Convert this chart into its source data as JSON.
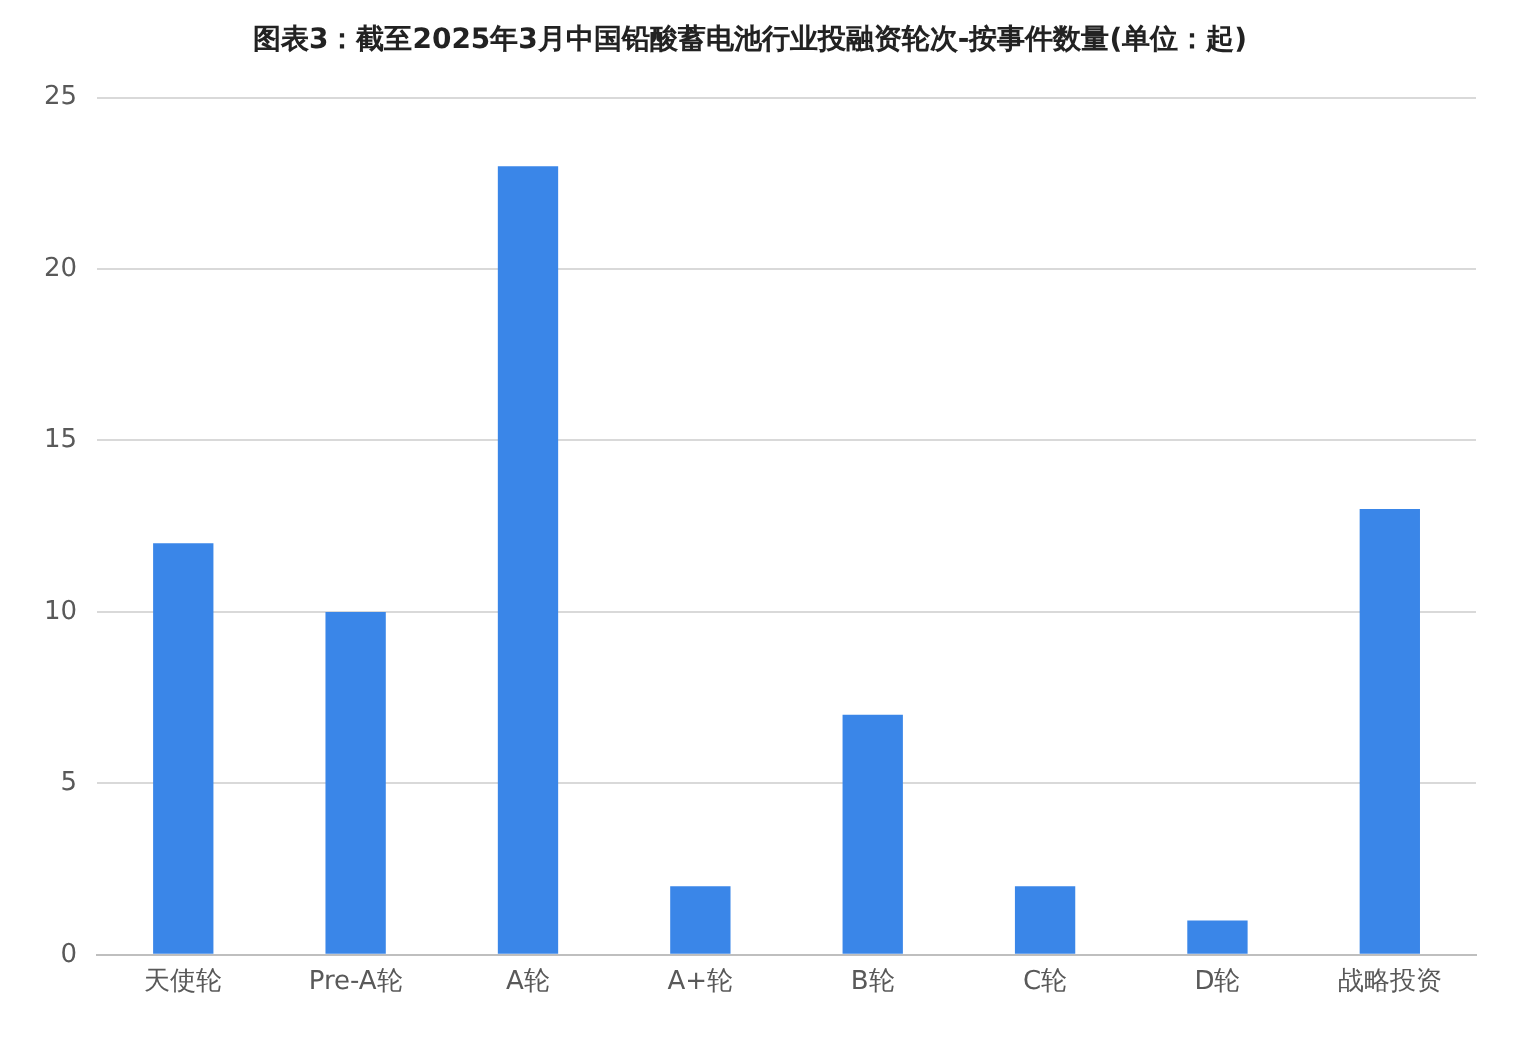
{
  "chart_data": {
    "type": "bar",
    "title": "图表3：截至2025年3月中国铅酸蓄电池行业投融资轮次-按事件数量(单位：起)",
    "categories": [
      "天使轮",
      "Pre-A轮",
      "A轮",
      "A+轮",
      "B轮",
      "C轮",
      "D轮",
      "战略投资"
    ],
    "values": [
      12,
      10,
      23,
      2,
      7,
      2,
      1,
      13
    ],
    "color": "#3a86e8",
    "ylim": [
      0,
      25
    ],
    "yticks": [
      0,
      5,
      10,
      15,
      20,
      25
    ],
    "grid": "y",
    "legend": false
  }
}
